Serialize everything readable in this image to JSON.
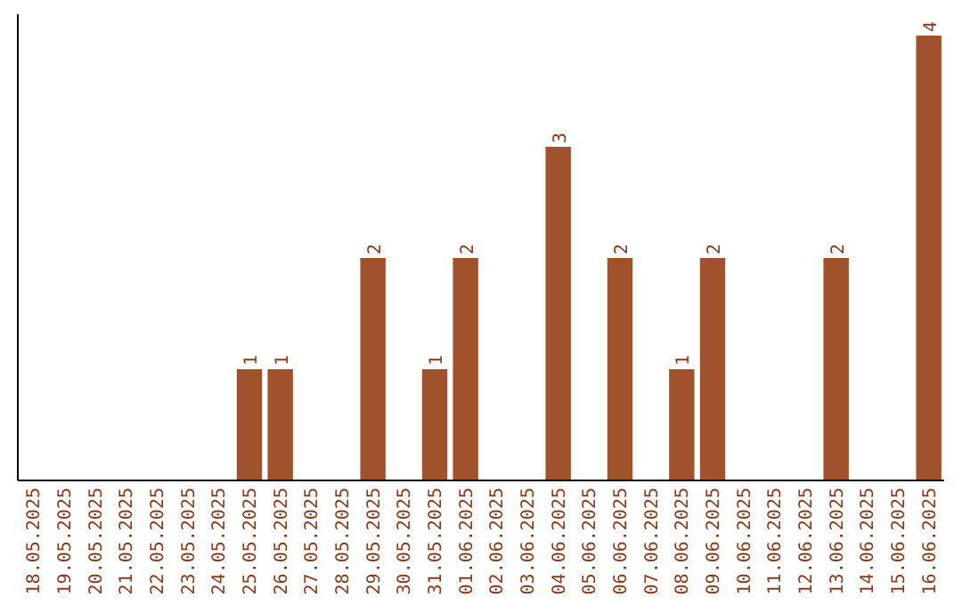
{
  "chart_data": {
    "type": "bar",
    "categories": [
      "18.05.2025",
      "19.05.2025",
      "20.05.2025",
      "21.05.2025",
      "22.05.2025",
      "23.05.2025",
      "24.05.2025",
      "25.05.2025",
      "26.05.2025",
      "27.05.2025",
      "28.05.2025",
      "29.05.2025",
      "30.05.2025",
      "31.05.2025",
      "01.06.2025",
      "02.06.2025",
      "03.06.2025",
      "04.06.2025",
      "05.06.2025",
      "06.06.2025",
      "07.06.2025",
      "08.06.2025",
      "09.06.2025",
      "10.06.2025",
      "11.06.2025",
      "12.06.2025",
      "13.06.2025",
      "14.06.2025",
      "15.06.2025",
      "16.06.2025"
    ],
    "values": [
      0,
      0,
      0,
      0,
      0,
      0,
      0,
      1,
      1,
      0,
      0,
      2,
      0,
      1,
      2,
      0,
      0,
      3,
      0,
      2,
      0,
      1,
      2,
      0,
      0,
      0,
      2,
      0,
      0,
      4
    ],
    "value_labels": [
      null,
      null,
      null,
      null,
      null,
      null,
      null,
      "1",
      "1",
      null,
      null,
      "2",
      null,
      "1",
      "2",
      null,
      null,
      "3",
      null,
      "2",
      null,
      "1",
      "2",
      null,
      null,
      null,
      "2",
      null,
      null,
      "4"
    ],
    "color": "#a0522d"
  }
}
